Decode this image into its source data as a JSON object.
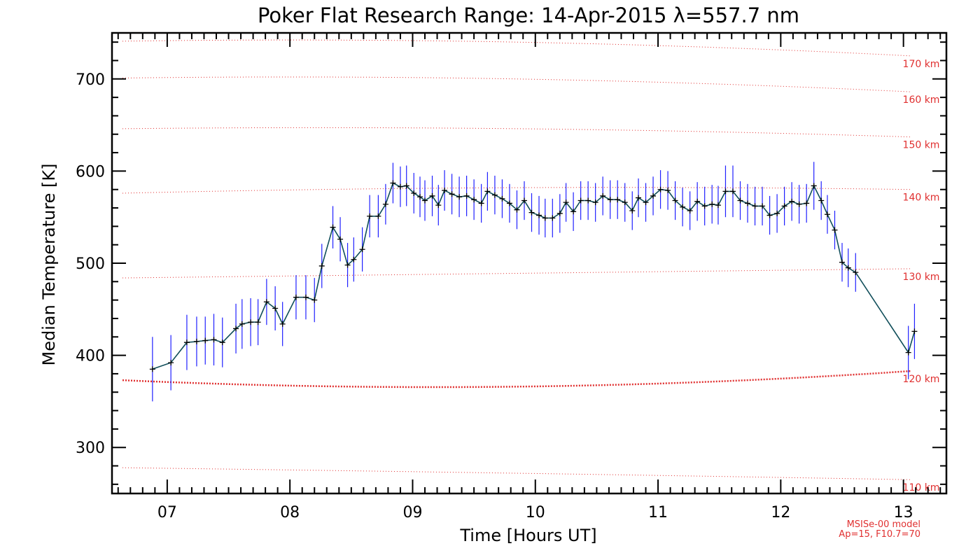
{
  "chart_data": {
    "type": "line",
    "title": "Poker Flat Research Range: 14-Apr-2015 λ=557.7 nm",
    "xlabel": "Time [Hours UT]",
    "ylabel": "Median Temperature [K]",
    "xlim": [
      6.55,
      13.35
    ],
    "ylim": [
      250,
      750
    ],
    "x_ticks": [
      7,
      8,
      9,
      10,
      11,
      12,
      13
    ],
    "x_tick_labels": [
      "07",
      "08",
      "09",
      "10",
      "11",
      "12",
      "13"
    ],
    "y_ticks": [
      300,
      400,
      500,
      600,
      700
    ],
    "y_tick_labels": [
      "300",
      "400",
      "500",
      "600",
      "700"
    ],
    "grid": false,
    "colors": {
      "line": "#104e5a",
      "error_bars": "#2020ff",
      "markers": "#000000",
      "model_lines": "#e03030",
      "axes": "#000000"
    },
    "series": [
      {
        "x": [
          6.88,
          7.03,
          7.16,
          7.24,
          7.31,
          7.38,
          7.45,
          7.56,
          7.61,
          7.68,
          7.74,
          7.81,
          7.88,
          7.94,
          8.05,
          8.13,
          8.2,
          8.26,
          8.35,
          8.41,
          8.47,
          8.52,
          8.59,
          8.65,
          8.72,
          8.78,
          8.84,
          8.9,
          8.95,
          9.01,
          9.06,
          9.1,
          9.16,
          9.21,
          9.26,
          9.32,
          9.38,
          9.44,
          9.5,
          9.56,
          9.61,
          9.67,
          9.73,
          9.79,
          9.85,
          9.91,
          9.97,
          10.03,
          10.08,
          10.14,
          10.2,
          10.25,
          10.31,
          10.37,
          10.43,
          10.49,
          10.55,
          10.61,
          10.67,
          10.73,
          10.79,
          10.84,
          10.9,
          10.96,
          11.02,
          11.08,
          11.14,
          11.2,
          11.26,
          11.32,
          11.38,
          11.44,
          11.49,
          11.55,
          11.61,
          11.67,
          11.73,
          11.79,
          11.85,
          11.91,
          11.97,
          12.03,
          12.09,
          12.15,
          12.21,
          12.27,
          12.33,
          12.38,
          12.44,
          12.5,
          12.55,
          12.61,
          13.04,
          13.09
        ],
        "y": [
          385,
          392,
          414,
          415,
          416,
          417,
          414,
          429,
          434,
          436,
          436,
          458,
          451,
          434,
          463,
          463,
          460,
          497,
          539,
          526,
          498,
          504,
          515,
          551,
          551,
          564,
          587,
          583,
          584,
          576,
          572,
          568,
          573,
          563,
          579,
          575,
          572,
          573,
          569,
          565,
          578,
          574,
          570,
          565,
          558,
          568,
          555,
          552,
          549,
          549,
          554,
          566,
          556,
          568,
          568,
          566,
          573,
          569,
          569,
          566,
          557,
          571,
          566,
          573,
          580,
          579,
          568,
          561,
          557,
          567,
          562,
          564,
          563,
          578,
          578,
          568,
          565,
          562,
          562,
          552,
          554,
          562,
          567,
          564,
          565,
          584,
          568,
          553,
          536,
          501,
          495,
          490,
          403,
          426
        ],
        "err": [
          35,
          30,
          30,
          27,
          26,
          28,
          27,
          27,
          27,
          26,
          25,
          25,
          24,
          24,
          24,
          24,
          24,
          24,
          23,
          24,
          24,
          24,
          24,
          23,
          23,
          22,
          22,
          22,
          22,
          22,
          22,
          22,
          22,
          22,
          22,
          22,
          22,
          22,
          22,
          21,
          21,
          21,
          21,
          21,
          21,
          21,
          21,
          21,
          21,
          21,
          21,
          21,
          21,
          21,
          21,
          21,
          21,
          21,
          21,
          21,
          21,
          21,
          21,
          21,
          21,
          21,
          21,
          21,
          21,
          21,
          21,
          21,
          21,
          28,
          28,
          21,
          21,
          21,
          21,
          21,
          21,
          21,
          21,
          21,
          21,
          26,
          21,
          21,
          21,
          21,
          21,
          21,
          29,
          30
        ]
      }
    ],
    "model_lines": [
      {
        "label": "110 km",
        "values": [
          278,
          272,
          265
        ]
      },
      {
        "label": "120 km",
        "values": [
          373,
          366,
          383
        ]
      },
      {
        "label": "130 km",
        "values": [
          484,
          489,
          494
        ]
      },
      {
        "label": "140 km",
        "values": [
          576,
          582,
          580
        ]
      },
      {
        "label": "150 km",
        "values": [
          646,
          646,
          637
        ]
      },
      {
        "label": "160 km",
        "values": [
          701,
          700,
          686
        ]
      },
      {
        "label": "170 km",
        "values": [
          741,
          740,
          725
        ]
      }
    ],
    "model_note": [
      "MSISe-00 model",
      "Ap=15, F10.7=70"
    ]
  }
}
